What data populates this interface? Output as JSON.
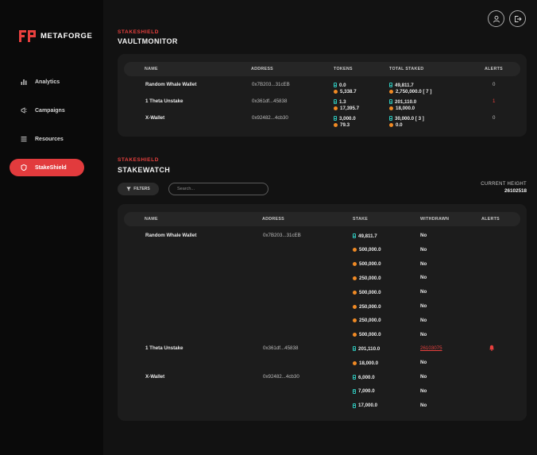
{
  "brand": {
    "name": "METAFORGE",
    "accent": "#e8403e"
  },
  "sidebar": {
    "items": [
      {
        "label": "Analytics",
        "icon": "bar-chart-icon"
      },
      {
        "label": "Campaigns",
        "icon": "megaphone-icon"
      },
      {
        "label": "Resources",
        "icon": "list-icon"
      },
      {
        "label": "StakeShield",
        "icon": "shield-icon",
        "active": true
      }
    ]
  },
  "header": {
    "user_icon": "user-icon",
    "logout_icon": "logout-icon"
  },
  "vault": {
    "kicker": "STAKESHIELD",
    "title": "VAULTMONITOR",
    "columns": [
      "NAME",
      "ADDRESS",
      "TOKENS",
      "TOTAL STAKED",
      "ALERTS"
    ],
    "rows": [
      {
        "name": "Random Whale Wallet",
        "address": "0x7B203...31cEB",
        "theta": "0.0",
        "tfuel": "5,338.7",
        "staked_theta": "49,811.7",
        "staked_tfuel": "2,750,000.0 [ 7 ]",
        "alerts": "0"
      },
      {
        "name": "1 Theta Unstake",
        "address": "0x361df...45838",
        "theta": "1.3",
        "tfuel": "17,395.7",
        "staked_theta": "201,110.0",
        "staked_tfuel": "18,000.0",
        "alerts": "1"
      },
      {
        "name": "X-Wallet",
        "address": "0x92482...4cb30",
        "theta": "3,000.0",
        "tfuel": "79.3",
        "staked_theta": "30,000.0 [ 3 ]",
        "staked_tfuel": "0.0",
        "alerts": "0"
      }
    ]
  },
  "watch": {
    "kicker": "STAKESHIELD",
    "title": "STAKEWATCH",
    "filters_label": "FILTERS",
    "search_placeholder": "Search...",
    "current_height_label": "CURRENT HEIGHT",
    "current_height": "26102518",
    "columns": [
      "NAME",
      "ADDRESS",
      "STAKE",
      "WITHDRAWN",
      "ALERTS"
    ],
    "rows": [
      {
        "name": "Random Whale Wallet",
        "address": "0x7B203...31cEB",
        "token": "theta",
        "stake": "49,811.7",
        "withdrawn": "No"
      },
      {
        "name": "",
        "address": "",
        "token": "tfuel",
        "stake": "500,000.0",
        "withdrawn": "No"
      },
      {
        "name": "",
        "address": "",
        "token": "tfuel",
        "stake": "500,000.0",
        "withdrawn": "No"
      },
      {
        "name": "",
        "address": "",
        "token": "tfuel",
        "stake": "250,000.0",
        "withdrawn": "No"
      },
      {
        "name": "",
        "address": "",
        "token": "tfuel",
        "stake": "500,000.0",
        "withdrawn": "No"
      },
      {
        "name": "",
        "address": "",
        "token": "tfuel",
        "stake": "250,000.0",
        "withdrawn": "No"
      },
      {
        "name": "",
        "address": "",
        "token": "tfuel",
        "stake": "250,000.0",
        "withdrawn": "No"
      },
      {
        "name": "",
        "address": "",
        "token": "tfuel",
        "stake": "500,000.0",
        "withdrawn": "No"
      },
      {
        "name": "1 Theta Unstake",
        "address": "0x361df...45838",
        "token": "theta",
        "stake": "201,110.0",
        "withdrawn": "26103075",
        "alert": "bell-icon"
      },
      {
        "name": "",
        "address": "",
        "token": "tfuel",
        "stake": "18,000.0",
        "withdrawn": "No"
      },
      {
        "name": "X-Wallet",
        "address": "0x92482...4cb30",
        "token": "theta",
        "stake": "6,000.0",
        "withdrawn": "No"
      },
      {
        "name": "",
        "address": "",
        "token": "theta",
        "stake": "7,000.0",
        "withdrawn": "No"
      },
      {
        "name": "",
        "address": "",
        "token": "theta",
        "stake": "17,000.0",
        "withdrawn": "No"
      }
    ]
  }
}
